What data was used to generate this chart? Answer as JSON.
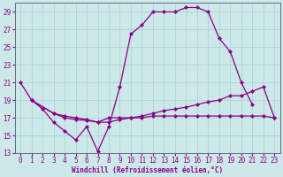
{
  "xlabel": "Windchill (Refroidissement éolien,°C)",
  "xlim": [
    -0.5,
    23.5
  ],
  "ylim": [
    13,
    30
  ],
  "xticks": [
    0,
    1,
    2,
    3,
    4,
    5,
    6,
    7,
    8,
    9,
    10,
    11,
    12,
    13,
    14,
    15,
    16,
    17,
    18,
    19,
    20,
    21,
    22,
    23
  ],
  "yticks": [
    13,
    15,
    17,
    19,
    21,
    23,
    25,
    27,
    29
  ],
  "bg_color": "#cce8e8",
  "grid_color": "#a8d0d0",
  "line_color": "#880088",
  "line1_x": [
    0,
    1,
    2,
    3,
    4,
    5,
    6,
    7,
    8,
    9,
    10,
    11,
    12,
    13,
    14,
    15,
    16,
    17,
    18,
    19,
    20,
    21
  ],
  "line1_y": [
    21,
    19,
    18,
    16.5,
    15.5,
    14.5,
    16,
    13.2,
    16,
    20.5,
    26.5,
    27.5,
    29.0,
    29.0,
    29.0,
    29.5,
    29.5,
    29.0,
    26,
    24.5,
    21,
    18.5
  ],
  "line2_x": [
    1,
    3,
    4,
    5,
    6,
    7,
    8,
    9,
    10,
    11,
    12,
    13,
    14,
    15,
    16,
    17,
    18,
    19,
    20,
    21,
    22,
    23
  ],
  "line2_y": [
    19,
    17.5,
    17.2,
    17.0,
    16.8,
    16.5,
    16.5,
    16.8,
    17.0,
    17.2,
    17.5,
    17.8,
    18.0,
    18.2,
    18.5,
    18.8,
    19.0,
    19.5,
    19.5,
    20.0,
    20.5,
    17.0
  ],
  "line3_x": [
    1,
    3,
    4,
    5,
    6,
    7,
    8,
    9,
    10,
    11,
    12,
    13,
    14,
    15,
    16,
    17,
    18,
    19,
    20,
    21,
    22,
    23
  ],
  "line3_y": [
    19,
    17.5,
    17.0,
    16.8,
    16.7,
    16.5,
    17.0,
    17.0,
    17.0,
    17.0,
    17.2,
    17.2,
    17.2,
    17.2,
    17.2,
    17.2,
    17.2,
    17.2,
    17.2,
    17.2,
    17.2,
    17.0
  ]
}
